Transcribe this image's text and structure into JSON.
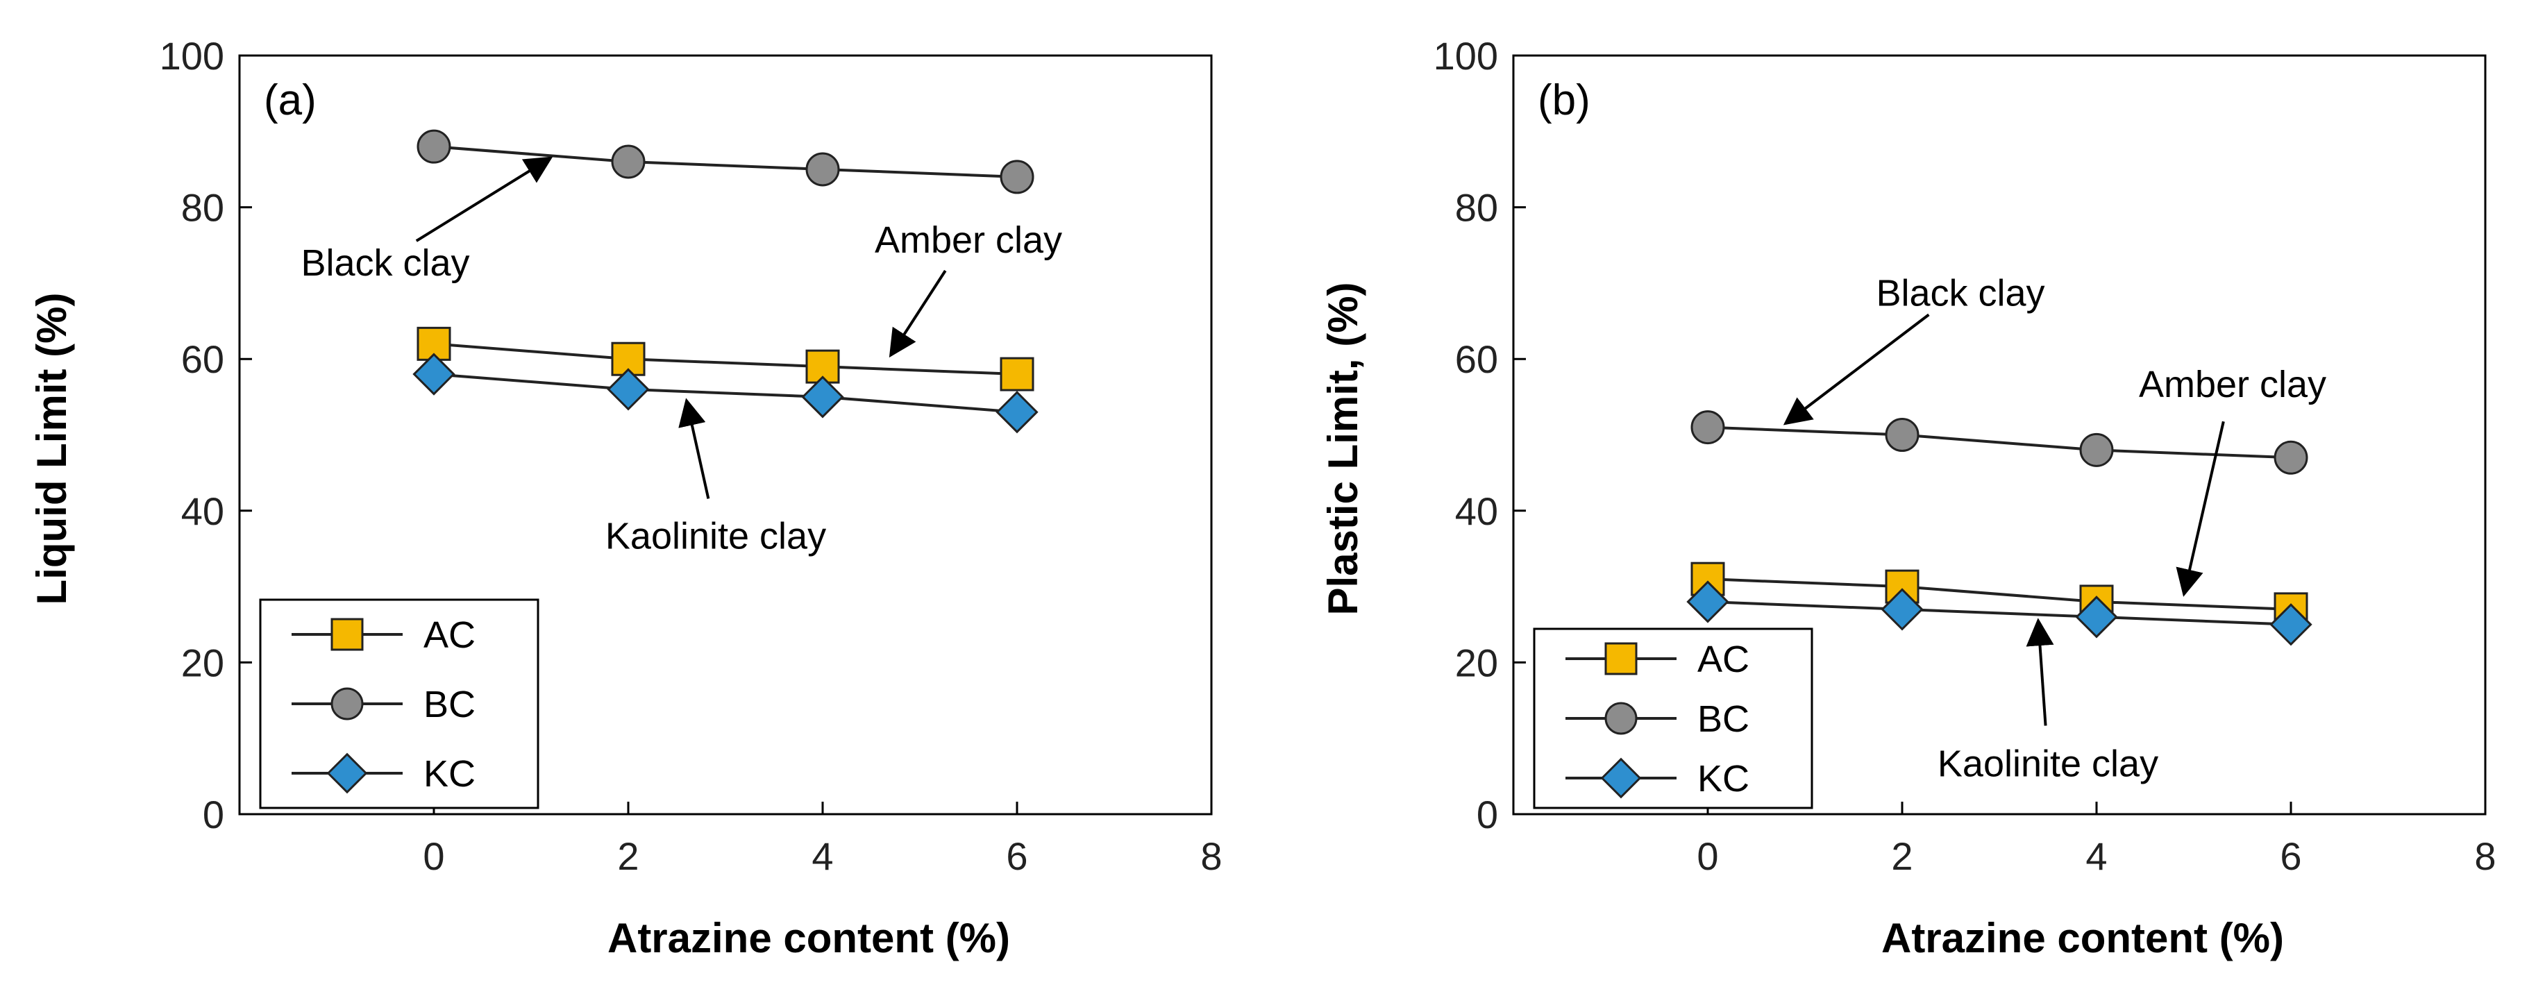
{
  "colors": {
    "AC": "#F5B800",
    "BC": "#8C8C8C",
    "KC": "#2E8FCF",
    "line": "#222222"
  },
  "chart_data": [
    {
      "type": "line",
      "panel_label": "(a)",
      "xlabel": "Atrazine content (%)",
      "ylabel": "Liquid Limit (%)",
      "xlim": [
        -2,
        8
      ],
      "ylim": [
        0,
        100
      ],
      "x_ticks": [
        "0",
        "2",
        "4",
        "6",
        "8"
      ],
      "y_ticks": [
        "0",
        "20",
        "40",
        "60",
        "80",
        "100"
      ],
      "x": [
        0,
        2,
        4,
        6
      ],
      "series": [
        {
          "name": "AC",
          "marker": "square",
          "values": [
            62,
            60,
            59,
            58
          ]
        },
        {
          "name": "BC",
          "marker": "circle",
          "values": [
            88,
            86,
            85,
            84
          ]
        },
        {
          "name": "KC",
          "marker": "diamond",
          "values": [
            58,
            56,
            55,
            53
          ]
        }
      ],
      "legend": {
        "position": "bottom-left",
        "entries": [
          "AC",
          "BC",
          "KC"
        ]
      },
      "annotations": [
        {
          "text": "Black clay",
          "anchor": [
            -0.5,
            71
          ],
          "target": [
            1.2,
            86.5
          ]
        },
        {
          "text": "Amber clay",
          "anchor": [
            5.5,
            74
          ],
          "target": [
            4.7,
            60.5
          ]
        },
        {
          "text": "Kaolinite clay",
          "anchor": [
            2.9,
            35
          ],
          "target": [
            2.6,
            54.5
          ]
        }
      ]
    },
    {
      "type": "line",
      "panel_label": "(b)",
      "xlabel": "Atrazine content (%)",
      "ylabel": "Plastic Limit, (%)",
      "xlim": [
        -2,
        8
      ],
      "ylim": [
        0,
        100
      ],
      "x_ticks": [
        "0",
        "2",
        "4",
        "6",
        "8"
      ],
      "y_ticks": [
        "0",
        "20",
        "40",
        "60",
        "80",
        "100"
      ],
      "x": [
        0,
        2,
        4,
        6
      ],
      "series": [
        {
          "name": "AC",
          "marker": "square",
          "values": [
            31,
            30,
            28,
            27
          ]
        },
        {
          "name": "BC",
          "marker": "circle",
          "values": [
            51,
            50,
            48,
            47
          ]
        },
        {
          "name": "KC",
          "marker": "diamond",
          "values": [
            28,
            27,
            26,
            25
          ]
        }
      ],
      "legend": {
        "position": "bottom-left",
        "entries": [
          "AC",
          "BC",
          "KC"
        ]
      },
      "annotations": [
        {
          "text": "Black clay",
          "anchor": [
            2.6,
            67
          ],
          "target": [
            0.8,
            51.5
          ]
        },
        {
          "text": "Amber clay",
          "anchor": [
            5.4,
            55
          ],
          "target": [
            4.9,
            29
          ]
        },
        {
          "text": "Kaolinite clay",
          "anchor": [
            3.5,
            5
          ],
          "target": [
            3.4,
            25.5
          ]
        }
      ]
    }
  ]
}
